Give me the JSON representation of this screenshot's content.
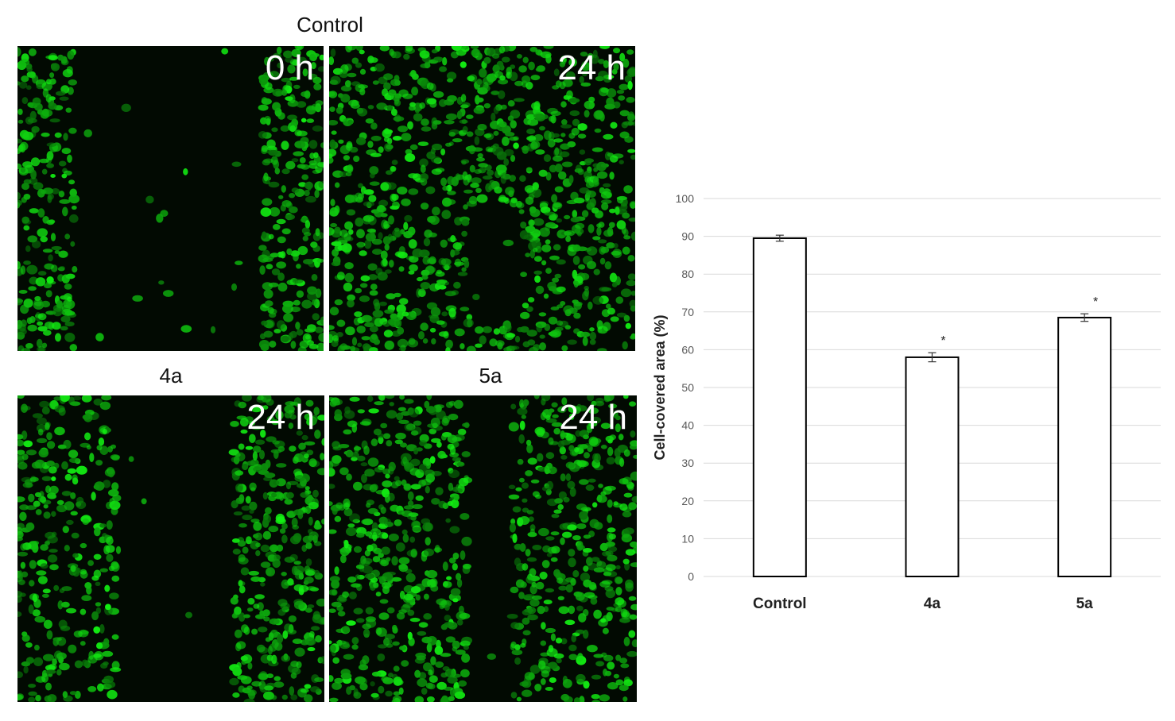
{
  "figure": {
    "panel_labels": {
      "control": "Control",
      "p4a": "4a",
      "p5a": "5a"
    },
    "time_labels": {
      "control_0": "0 h",
      "control_24": "24 h",
      "p4a_24": "24 h",
      "p5a_24": "24 h"
    },
    "colors": {
      "fluorescence": "#22cc22",
      "background": "#020a02"
    }
  },
  "chart_data": {
    "type": "bar",
    "categories": [
      "Control",
      "4a",
      "5a"
    ],
    "values": [
      89.5,
      58,
      68.5
    ],
    "errors": [
      0.8,
      1.2,
      1.0
    ],
    "significance": [
      "",
      "*",
      "*"
    ],
    "title": "",
    "xlabel": "",
    "ylabel": "Cell-covered area (%)",
    "ylim": [
      0,
      100
    ],
    "yticks": [
      0,
      10,
      20,
      30,
      40,
      50,
      60,
      70,
      80,
      90,
      100
    ],
    "grid": true,
    "bar_fill": "#ffffff",
    "bar_stroke": "#000000"
  }
}
